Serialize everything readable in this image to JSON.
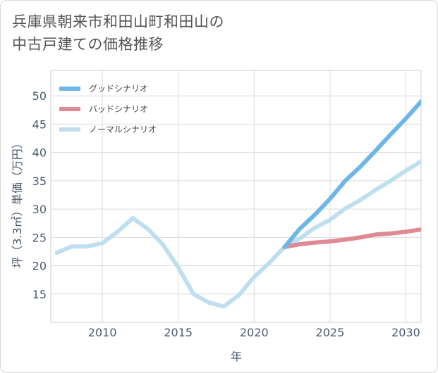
{
  "title_lines": [
    "兵庫県朝来市和田山町和田山の",
    "中古戸建ての価格推移"
  ],
  "chart_data": {
    "type": "line",
    "xlabel": "年",
    "ylabel": "坪（3.3㎡）単価（万円）",
    "xlim": [
      2006.6,
      2031
    ],
    "ylim": [
      10,
      54.5
    ],
    "xticks": [
      2010,
      2015,
      2020,
      2025,
      2030
    ],
    "yticks": [
      15,
      20,
      25,
      30,
      35,
      40,
      45,
      50
    ],
    "grid": true,
    "legend_position": "top-left",
    "series": [
      {
        "name": "グッドシナリオ",
        "color": "#6cb6e8",
        "x": [
          2022,
          2023,
          2024,
          2025,
          2026,
          2027,
          2028,
          2029,
          2030,
          2031
        ],
        "y": [
          23.3,
          26.5,
          29.0,
          31.8,
          35.0,
          37.5,
          40.3,
          43.2,
          46.0,
          49.0
        ]
      },
      {
        "name": "バッドシナリオ",
        "color": "#de8a94",
        "x": [
          2022,
          2023,
          2024,
          2025,
          2026,
          2027,
          2028,
          2029,
          2030,
          2031
        ],
        "y": [
          23.3,
          23.8,
          24.1,
          24.3,
          24.6,
          25.0,
          25.5,
          25.7,
          26.0,
          26.4
        ]
      },
      {
        "name": "ノーマルシナリオ",
        "color": "#bfdfee",
        "x": [
          2007,
          2008,
          2009,
          2010,
          2011,
          2012,
          2013,
          2014,
          2015,
          2016,
          2017,
          2018,
          2019,
          2020,
          2021,
          2022,
          2023,
          2024,
          2025,
          2026,
          2027,
          2028,
          2029,
          2030,
          2031
        ],
        "y": [
          22.3,
          23.4,
          23.4,
          24.0,
          26.0,
          28.4,
          26.5,
          23.7,
          19.7,
          15.0,
          13.5,
          12.8,
          14.8,
          18.0,
          20.5,
          23.3,
          24.8,
          26.7,
          28.1,
          30.1,
          31.6,
          33.4,
          35.0,
          36.8,
          38.4
        ]
      }
    ]
  }
}
